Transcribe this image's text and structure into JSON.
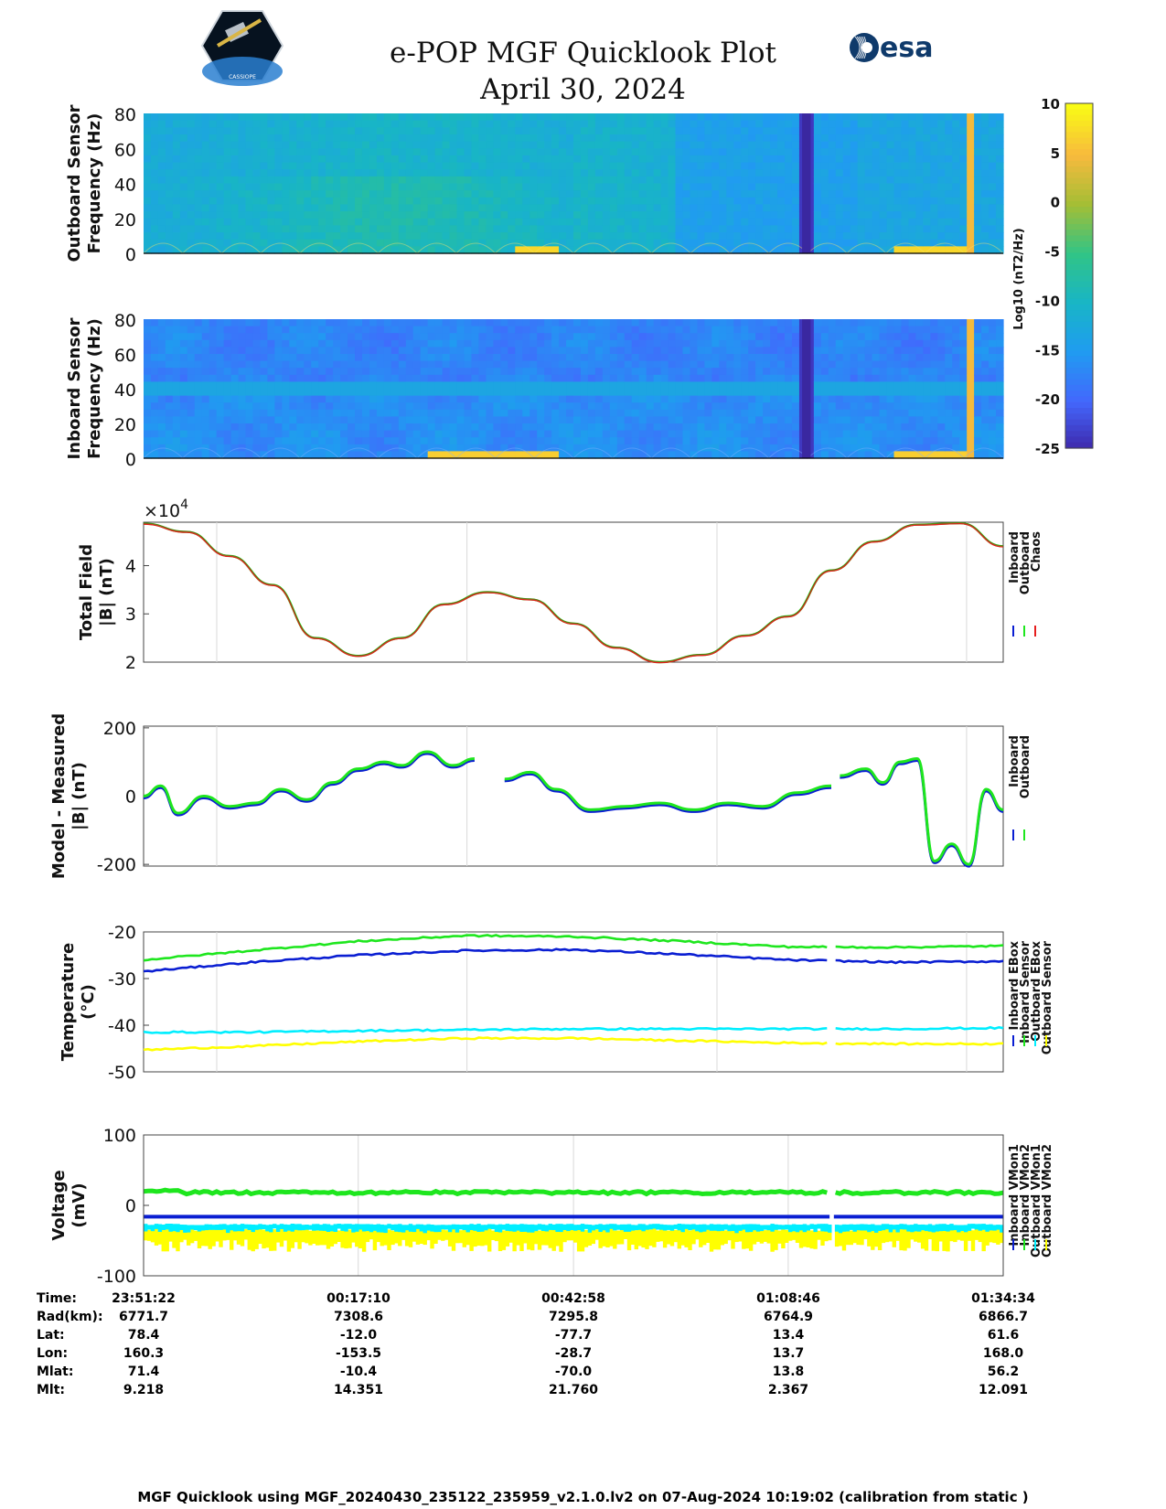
{
  "header": {
    "title": "e-POP MGF Quicklook Plot",
    "date": "April 30, 2024",
    "left_logo": "cassiope-mission-patch",
    "right_logo": "esa-logo",
    "right_logo_text": "esa",
    "left_logo_text": "CASSIOPE"
  },
  "colors": {
    "inboard": "#0a1ed2",
    "outboard": "#1ee61e",
    "chaos": "#e61e1e",
    "cyan": "#00eeff",
    "yellow": "#ffff00",
    "colormap": [
      "#3e26a8",
      "#4367fd",
      "#209bf1",
      "#18b5c6",
      "#31c486",
      "#a4be35",
      "#f8ba3d",
      "#f9fb15"
    ]
  },
  "chart_data": [
    {
      "type": "heatmap",
      "ylabel": [
        "Outboard Sensor",
        "Frequency (Hz)"
      ],
      "ylim": [
        0,
        80
      ],
      "yticks": [
        "80",
        "60",
        "40",
        "20",
        "0"
      ],
      "colorbar": {
        "label": "Log10 (nT2/Hz)",
        "range": [
          -25,
          10
        ],
        "ticks": [
          "10",
          "5",
          "0",
          "-5",
          "-10",
          "-15",
          "-20",
          "-25"
        ]
      },
      "data_gap_fraction": [
        0.766,
        0.776
      ]
    },
    {
      "type": "heatmap",
      "ylabel": [
        "Inboard Sensor",
        "Frequency (Hz)"
      ],
      "ylim": [
        0,
        80
      ],
      "yticks": [
        "80",
        "60",
        "40",
        "20",
        "0"
      ]
    },
    {
      "type": "line",
      "ylabel": [
        "Total Field",
        "|B| (nT)"
      ],
      "exponent_label": "×10",
      "exponent_power": "4",
      "ylim": [
        2,
        4.9
      ],
      "yticks": [
        "4",
        "3",
        "2"
      ],
      "series": [
        {
          "name": "Inboard"
        },
        {
          "name": "Outboard"
        },
        {
          "name": "Chaos"
        }
      ],
      "x_fraction": [
        0,
        0.05,
        0.1,
        0.15,
        0.2,
        0.25,
        0.3,
        0.35,
        0.4,
        0.45,
        0.5,
        0.55,
        0.6,
        0.65,
        0.7,
        0.75,
        0.8,
        0.85,
        0.9,
        0.95,
        1.0
      ],
      "values": [
        4.87,
        4.7,
        4.2,
        3.6,
        2.5,
        2.13,
        2.5,
        3.2,
        3.45,
        3.3,
        2.8,
        2.3,
        2.0,
        2.15,
        2.55,
        2.95,
        3.9,
        4.5,
        4.85,
        4.88,
        4.4
      ]
    },
    {
      "type": "line",
      "ylabel": [
        "Model - Measured",
        "|B| (nT)"
      ],
      "ylim": [
        -205,
        205
      ],
      "yticks": [
        "200",
        "0",
        "-200"
      ],
      "series": [
        {
          "name": "Inboard"
        },
        {
          "name": "Outboard"
        }
      ],
      "segments_x_fraction": [
        [
          0,
          0.385
        ],
        [
          0.42,
          0.8
        ],
        [
          0.81,
          1.0
        ]
      ],
      "x_fraction": [
        0,
        0.02,
        0.04,
        0.07,
        0.1,
        0.13,
        0.16,
        0.19,
        0.22,
        0.25,
        0.28,
        0.3,
        0.33,
        0.36,
        0.385,
        0.42,
        0.45,
        0.48,
        0.52,
        0.56,
        0.6,
        0.64,
        0.68,
        0.72,
        0.76,
        0.8,
        0.81,
        0.84,
        0.86,
        0.88,
        0.9,
        0.92,
        0.94,
        0.96,
        0.98,
        1.0
      ],
      "values": [
        0,
        30,
        -50,
        0,
        -30,
        -20,
        20,
        -10,
        40,
        80,
        100,
        90,
        130,
        90,
        110,
        50,
        70,
        20,
        -40,
        -30,
        -20,
        -40,
        -20,
        -30,
        10,
        30,
        60,
        80,
        40,
        100,
        110,
        -190,
        -140,
        -200,
        20,
        -40
      ]
    },
    {
      "type": "line",
      "ylabel": [
        "Temperature",
        "(°C)"
      ],
      "ylim": [
        -50,
        -20
      ],
      "yticks": [
        "-20",
        "-30",
        "-40",
        "-50"
      ],
      "series": [
        {
          "name": "Inboard EBox",
          "values": [
            -28.5,
            -26.5,
            -25.0,
            -24.0,
            -23.8,
            -24.8,
            -26.0,
            -26.5,
            -26.3
          ]
        },
        {
          "name": "Inboard Sensor",
          "values": [
            -26.0,
            -24.0,
            -22.0,
            -20.8,
            -21.0,
            -22.0,
            -23.2,
            -23.3,
            -23.0
          ]
        },
        {
          "name": "Outboard EBox",
          "values": [
            -41.5,
            -41.5,
            -41.2,
            -41.0,
            -40.8,
            -40.8,
            -40.8,
            -40.8,
            -40.6
          ]
        },
        {
          "name": "Outboard Sensor",
          "values": [
            -45.3,
            -44.5,
            -43.5,
            -42.8,
            -42.8,
            -43.3,
            -43.8,
            -44.0,
            -44.0
          ]
        }
      ],
      "x_fraction": [
        0,
        0.125,
        0.25,
        0.375,
        0.5,
        0.625,
        0.75,
        0.875,
        1.0
      ],
      "gap_x_fraction": [
        0.798,
        0.803
      ]
    },
    {
      "type": "line",
      "ylabel": [
        "Voltage",
        "(mV)"
      ],
      "ylim": [
        -100,
        100
      ],
      "yticks": [
        "100",
        "0",
        "-100"
      ],
      "series": [
        {
          "name": "Inboard VMon1",
          "level": -16
        },
        {
          "name": "Inboard VMon2",
          "level": 18
        },
        {
          "name": "Outboard VMon1",
          "level": -30
        },
        {
          "name": "Outboard VMon2",
          "level": -50
        }
      ],
      "gap_x_fraction": [
        0.798,
        0.803
      ]
    }
  ],
  "ephemeris": {
    "labels": [
      "Time:",
      "Rad(km):",
      "Lat:",
      "Lon:",
      "Mlat:",
      "Mlt:"
    ],
    "columns": [
      [
        "23:51:22",
        "6771.7",
        "78.4",
        "160.3",
        "71.4",
        "9.218"
      ],
      [
        "00:17:10",
        "7308.6",
        "-12.0",
        "-153.5",
        "-10.4",
        "14.351"
      ],
      [
        "00:42:58",
        "7295.8",
        "-77.7",
        "-28.7",
        "-70.0",
        "21.760"
      ],
      [
        "01:08:46",
        "6764.9",
        "13.4",
        "13.7",
        "13.8",
        "2.367"
      ],
      [
        "01:34:34",
        "6866.7",
        "61.6",
        "168.0",
        "56.2",
        "12.091"
      ]
    ]
  },
  "footer": "MGF Quicklook using MGF_20240430_235122_235959_v2.1.0.lv2 on 07-Aug-2024 10:19:02 (calibration from static )"
}
